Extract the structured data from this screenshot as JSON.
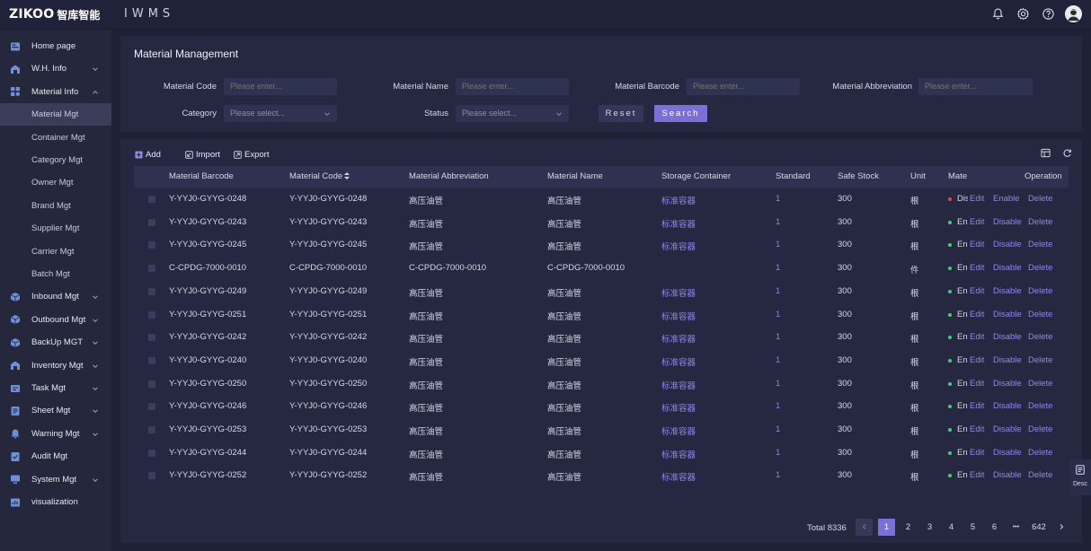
{
  "header": {
    "logo_mark": "ZIKOO",
    "logo_cn": "智库智能",
    "app_name": "IWMS",
    "icons": [
      "bell-icon",
      "gear-icon",
      "help-icon",
      "user-avatar"
    ]
  },
  "sidebar": {
    "items": [
      {
        "label": "Home page",
        "icon": "home-icon",
        "type": "top",
        "chevron": ""
      },
      {
        "label": "W.H. Info",
        "icon": "warehouse-icon",
        "type": "top",
        "chevron": "down"
      },
      {
        "label": "Material Info",
        "icon": "material-icon",
        "type": "top",
        "chevron": "up"
      },
      {
        "label": "Material Mgt",
        "type": "sub",
        "active": true
      },
      {
        "label": "Container Mgt",
        "type": "sub"
      },
      {
        "label": "Category Mgt",
        "type": "sub"
      },
      {
        "label": "Owner Mgt",
        "type": "sub"
      },
      {
        "label": "Brand Mgt",
        "type": "sub"
      },
      {
        "label": "Supplier Mgt",
        "type": "sub"
      },
      {
        "label": "Carrier Mgt",
        "type": "sub"
      },
      {
        "label": "Batch Mgt",
        "type": "sub"
      },
      {
        "label": "Inbound Mgt",
        "icon": "inbound-icon",
        "type": "top",
        "chevron": "down"
      },
      {
        "label": "Outbound Mgt",
        "icon": "outbound-icon",
        "type": "top",
        "chevron": "down"
      },
      {
        "label": "BackUp MGT",
        "icon": "backup-icon",
        "type": "top",
        "chevron": "down"
      },
      {
        "label": "Inventory Mgt",
        "icon": "inventory-icon",
        "type": "top",
        "chevron": "down"
      },
      {
        "label": "Task Mgt",
        "icon": "task-icon",
        "type": "top",
        "chevron": "down"
      },
      {
        "label": "Sheet Mgt",
        "icon": "sheet-icon",
        "type": "top",
        "chevron": "down"
      },
      {
        "label": "Warning Mgt",
        "icon": "warning-icon",
        "type": "top",
        "chevron": "down"
      },
      {
        "label": "Audit Mgt",
        "icon": "audit-icon",
        "type": "top",
        "chevron": ""
      },
      {
        "label": "System Mgt",
        "icon": "system-icon",
        "type": "top",
        "chevron": "down"
      },
      {
        "label": "visualization",
        "icon": "visualization-icon",
        "type": "top",
        "chevron": ""
      }
    ]
  },
  "filters": {
    "title": "Material Management",
    "material_code_label": "Material Code",
    "material_code_placeholder": "Please enter...",
    "material_name_label": "Material Name",
    "material_name_placeholder": "Please enter...",
    "material_barcode_label": "Material Barcode",
    "material_barcode_placeholder": "Please enter...",
    "material_abbr_label": "Material Abbreviation",
    "material_abbr_placeholder": "Please enter...",
    "category_label": "Category",
    "category_placeholder": "Please select...",
    "status_label": "Status",
    "status_placeholder": "Please select...",
    "reset_label": "Reset",
    "search_label": "Search"
  },
  "toolbar": {
    "add_label": "Add",
    "import_label": "Import",
    "export_label": "Export"
  },
  "table": {
    "columns": [
      "Material Barcode",
      "Material Code",
      "Material Abbreviation",
      "Material Name",
      "Storage Container",
      "Standard",
      "Safe Stock",
      "Unit",
      "Mate",
      "Operation"
    ],
    "rows": [
      {
        "barcode": "Y-YYJ0-GYYG-0248",
        "code": "Y-YYJ0-GYYG-0248",
        "abbr": "高压油管",
        "name": "高压油管",
        "container": "标准容器",
        "standard": "1",
        "safe_stock": "300",
        "unit": "根",
        "status": "Dis",
        "status_color": "#e8455a",
        "edit": "Edit",
        "toggle": "Enable",
        "delete": "Delete"
      },
      {
        "barcode": "Y-YYJ0-GYYG-0243",
        "code": "Y-YYJ0-GYYG-0243",
        "abbr": "高压油管",
        "name": "高压油管",
        "container": "标准容器",
        "standard": "1",
        "safe_stock": "300",
        "unit": "根",
        "status": "En",
        "status_color": "#3fd17a",
        "edit": "Edit",
        "toggle": "Disable",
        "delete": "Delete"
      },
      {
        "barcode": "Y-YYJ0-GYYG-0245",
        "code": "Y-YYJ0-GYYG-0245",
        "abbr": "高压油管",
        "name": "高压油管",
        "container": "标准容器",
        "standard": "1",
        "safe_stock": "300",
        "unit": "根",
        "status": "En",
        "status_color": "#3fd17a",
        "edit": "Edit",
        "toggle": "Disable",
        "delete": "Delete"
      },
      {
        "barcode": "C-CPDG-7000-0010",
        "code": "C-CPDG-7000-0010",
        "abbr": "C-CPDG-7000-0010",
        "name": "C-CPDG-7000-0010",
        "container": "",
        "standard": "1",
        "safe_stock": "300",
        "unit": "件",
        "status": "En",
        "status_color": "#3fd17a",
        "edit": "Edit",
        "toggle": "Disable",
        "delete": "Delete"
      },
      {
        "barcode": "Y-YYJ0-GYYG-0249",
        "code": "Y-YYJ0-GYYG-0249",
        "abbr": "高压油管",
        "name": "高压油管",
        "container": "标准容器",
        "standard": "1",
        "safe_stock": "300",
        "unit": "根",
        "status": "En",
        "status_color": "#3fd17a",
        "edit": "Edit",
        "toggle": "Disable",
        "delete": "Delete"
      },
      {
        "barcode": "Y-YYJ0-GYYG-0251",
        "code": "Y-YYJ0-GYYG-0251",
        "abbr": "高压油管",
        "name": "高压油管",
        "container": "标准容器",
        "standard": "1",
        "safe_stock": "300",
        "unit": "根",
        "status": "En",
        "status_color": "#3fd17a",
        "edit": "Edit",
        "toggle": "Disable",
        "delete": "Delete"
      },
      {
        "barcode": "Y-YYJ0-GYYG-0242",
        "code": "Y-YYJ0-GYYG-0242",
        "abbr": "高压油管",
        "name": "高压油管",
        "container": "标准容器",
        "standard": "1",
        "safe_stock": "300",
        "unit": "根",
        "status": "En",
        "status_color": "#3fd17a",
        "edit": "Edit",
        "toggle": "Disable",
        "delete": "Delete"
      },
      {
        "barcode": "Y-YYJ0-GYYG-0240",
        "code": "Y-YYJ0-GYYG-0240",
        "abbr": "高压油管",
        "name": "高压油管",
        "container": "标准容器",
        "standard": "1",
        "safe_stock": "300",
        "unit": "根",
        "status": "En",
        "status_color": "#3fd17a",
        "edit": "Edit",
        "toggle": "Disable",
        "delete": "Delete"
      },
      {
        "barcode": "Y-YYJ0-GYYG-0250",
        "code": "Y-YYJ0-GYYG-0250",
        "abbr": "高压油管",
        "name": "高压油管",
        "container": "标准容器",
        "standard": "1",
        "safe_stock": "300",
        "unit": "根",
        "status": "En",
        "status_color": "#3fd17a",
        "edit": "Edit",
        "toggle": "Disable",
        "delete": "Delete"
      },
      {
        "barcode": "Y-YYJ0-GYYG-0246",
        "code": "Y-YYJ0-GYYG-0246",
        "abbr": "高压油管",
        "name": "高压油管",
        "container": "标准容器",
        "standard": "1",
        "safe_stock": "300",
        "unit": "根",
        "status": "En",
        "status_color": "#3fd17a",
        "edit": "Edit",
        "toggle": "Disable",
        "delete": "Delete"
      },
      {
        "barcode": "Y-YYJ0-GYYG-0253",
        "code": "Y-YYJ0-GYYG-0253",
        "abbr": "高压油管",
        "name": "高压油管",
        "container": "标准容器",
        "standard": "1",
        "safe_stock": "300",
        "unit": "根",
        "status": "En",
        "status_color": "#3fd17a",
        "edit": "Edit",
        "toggle": "Disable",
        "delete": "Delete"
      },
      {
        "barcode": "Y-YYJ0-GYYG-0244",
        "code": "Y-YYJ0-GYYG-0244",
        "abbr": "高压油管",
        "name": "高压油管",
        "container": "标准容器",
        "standard": "1",
        "safe_stock": "300",
        "unit": "根",
        "status": "En",
        "status_color": "#3fd17a",
        "edit": "Edit",
        "toggle": "Disable",
        "delete": "Delete"
      },
      {
        "barcode": "Y-YYJ0-GYYG-0252",
        "code": "Y-YYJ0-GYYG-0252",
        "abbr": "高压油管",
        "name": "高压油管",
        "container": "标准容器",
        "standard": "1",
        "safe_stock": "300",
        "unit": "根",
        "status": "En",
        "status_color": "#3fd17a",
        "edit": "Edit",
        "toggle": "Disable",
        "delete": "Delete"
      }
    ]
  },
  "pagination": {
    "total_label": "Total 8336",
    "pages": [
      "1",
      "2",
      "3",
      "4",
      "5",
      "6"
    ],
    "current": "1",
    "ellipsis": "•••",
    "last_page": "642"
  },
  "float_panel": {
    "label": "Desc"
  },
  "colors": {
    "accent": "#7c6fd8",
    "link": "#8f86e8",
    "enabled": "#3fd17a",
    "disabled": "#e8455a"
  }
}
